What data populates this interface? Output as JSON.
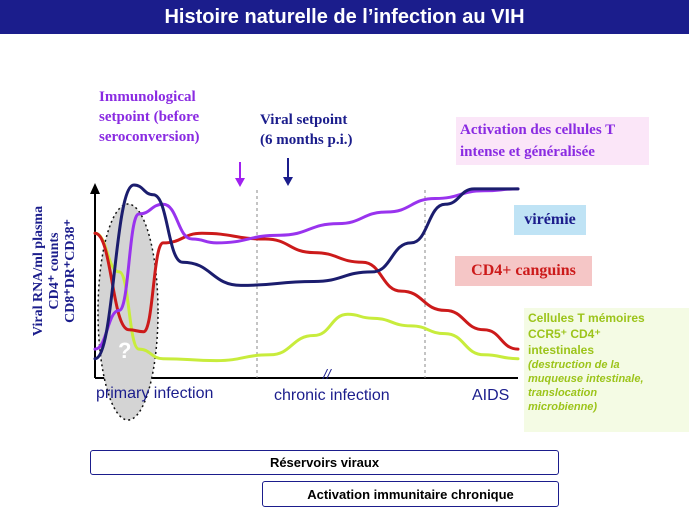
{
  "title": "Histoire naturelle de l’infection au VIH",
  "annotations": {
    "immuno_setpoint": [
      "Immunological",
      "setpoint (before",
      "seroconversion)"
    ],
    "viral_setpoint": [
      "Viral setpoint",
      "(6 months p.i.)"
    ],
    "activation": [
      "Activation des cellules T",
      "intense et généralisée"
    ],
    "viremie": "virémie",
    "cd4_sang": "CD4+ canguins",
    "memory_t": [
      "Cellules T mémoires",
      "CCR5⁺ CD4⁺",
      "intestinales"
    ],
    "memory_note": [
      "(destruction de la",
      "muqueuse intestinale,",
      "translocation",
      "microbienne)"
    ],
    "question_mark": "?"
  },
  "y_axis_labels": [
    "Viral RNA/ml plasma",
    "CD4⁺ counts",
    "CD8⁺DR⁺CD38⁺"
  ],
  "x_axis_labels": {
    "primary": "primary infection",
    "chronic": "chronic infection",
    "aids": "AIDS",
    "break": "//"
  },
  "bottom_boxes": {
    "reservoirs": "Réservoirs viraux",
    "activation": "Activation immunitaire chronique"
  },
  "colors": {
    "title_bg": "#1b1d8c",
    "viral": "#1b1d6e",
    "cd4": "#cc1a1a",
    "activation": "#9933ee",
    "memory": "#c8ec3c",
    "annot_purple": "#8a2be2",
    "annot_navy": "#1b1d8c"
  },
  "chart_data": {
    "type": "line",
    "xlabel": "",
    "ylabel": "",
    "series": [
      {
        "name": "virémie",
        "points": [
          [
            0,
            10
          ],
          [
            8,
            100
          ],
          [
            12,
            95
          ],
          [
            18,
            60
          ],
          [
            30,
            48
          ],
          [
            45,
            50
          ],
          [
            57,
            55
          ],
          [
            65,
            70
          ],
          [
            72,
            90
          ],
          [
            78,
            98
          ],
          [
            87,
            98
          ]
        ]
      },
      {
        "name": "CD4+ canguins",
        "points": [
          [
            0,
            75
          ],
          [
            7,
            25
          ],
          [
            10,
            24
          ],
          [
            14,
            70
          ],
          [
            22,
            75
          ],
          [
            35,
            72
          ],
          [
            45,
            65
          ],
          [
            55,
            60
          ],
          [
            63,
            45
          ],
          [
            72,
            35
          ],
          [
            80,
            25
          ],
          [
            87,
            15
          ]
        ]
      },
      {
        "name": "Activation des cellules T intense et généralisée",
        "points": [
          [
            0,
            15
          ],
          [
            5,
            35
          ],
          [
            9,
            85
          ],
          [
            14,
            90
          ],
          [
            20,
            72
          ],
          [
            25,
            70
          ],
          [
            38,
            74
          ],
          [
            50,
            80
          ],
          [
            60,
            86
          ],
          [
            70,
            93
          ],
          [
            80,
            97
          ],
          [
            87,
            98
          ]
        ]
      },
      {
        "name": "Cellules T mémoires CCR5⁺ CD4⁺ intestinales",
        "points": [
          [
            0,
            75
          ],
          [
            5,
            55
          ],
          [
            9,
            15
          ],
          [
            14,
            10
          ],
          [
            25,
            9
          ],
          [
            36,
            12
          ],
          [
            45,
            22
          ],
          [
            52,
            33
          ],
          [
            57,
            31
          ],
          [
            65,
            27
          ],
          [
            72,
            23
          ],
          [
            80,
            12
          ],
          [
            87,
            10
          ]
        ]
      }
    ]
  }
}
